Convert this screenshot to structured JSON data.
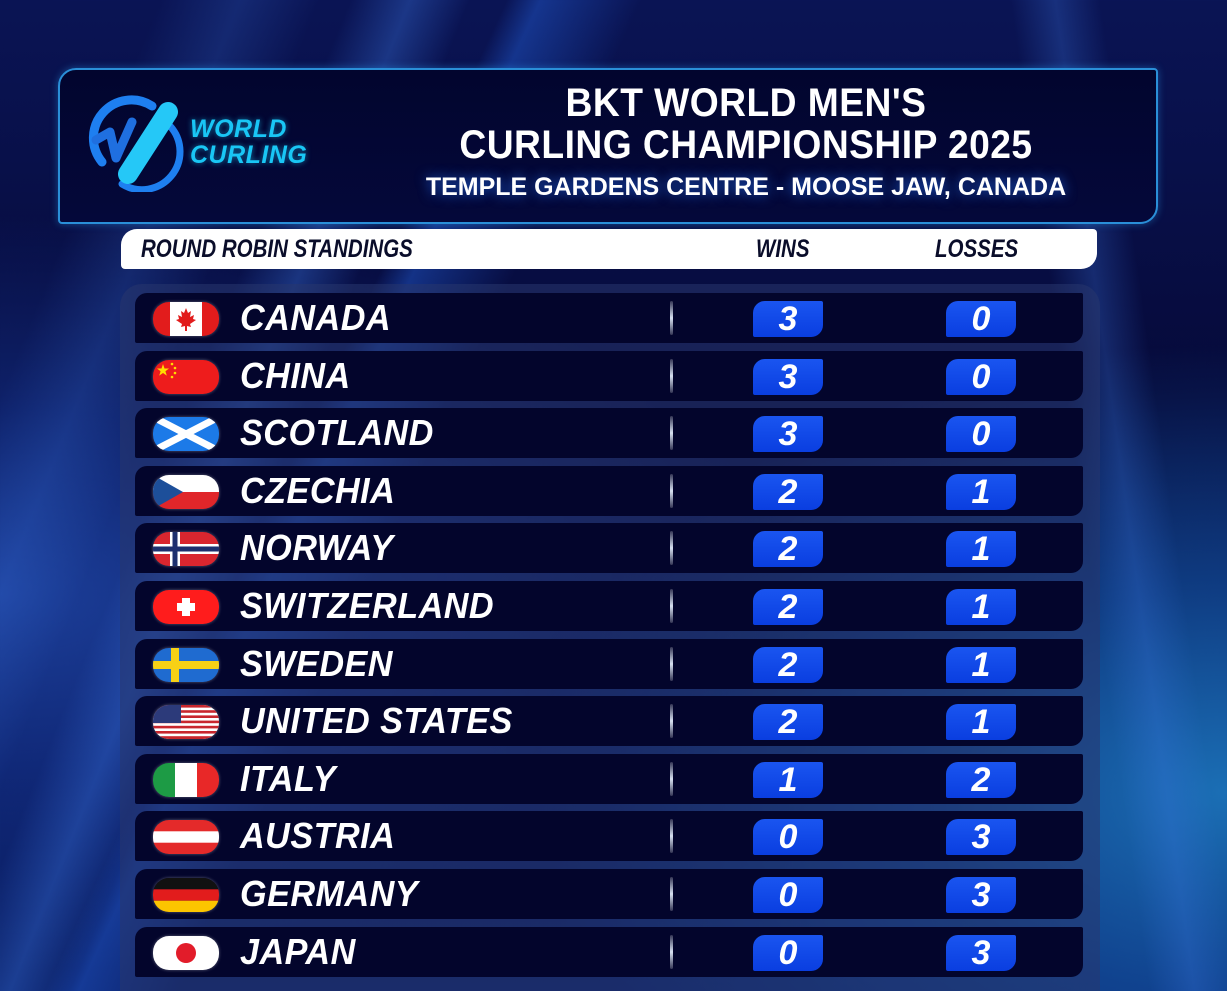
{
  "header": {
    "logo_text_line1": "WORLD",
    "logo_text_line2": "CURLING",
    "title_line1": "BKT WORLD MEN'S",
    "title_line2": "CURLING CHAMPIONSHIP 2025",
    "subtitle": "TEMPLE GARDENS CENTRE - MOOSE JAW, CANADA"
  },
  "columns": {
    "title": "ROUND ROBIN STANDINGS",
    "wins": "WINS",
    "losses": "LOSSES"
  },
  "colors": {
    "badge": "#0a3ee0",
    "row_bg": "#03052c",
    "logo": "#19c6f5",
    "header_border": "#2a8fd8"
  },
  "standings": [
    {
      "country": "CANADA",
      "flag": "canada-flag-icon",
      "wins": "3",
      "losses": "0"
    },
    {
      "country": "CHINA",
      "flag": "china-flag-icon",
      "wins": "3",
      "losses": "0"
    },
    {
      "country": "SCOTLAND",
      "flag": "scotland-flag-icon",
      "wins": "3",
      "losses": "0"
    },
    {
      "country": "CZECHIA",
      "flag": "czechia-flag-icon",
      "wins": "2",
      "losses": "1"
    },
    {
      "country": "NORWAY",
      "flag": "norway-flag-icon",
      "wins": "2",
      "losses": "1"
    },
    {
      "country": "SWITZERLAND",
      "flag": "switzerland-flag-icon",
      "wins": "2",
      "losses": "1"
    },
    {
      "country": "SWEDEN",
      "flag": "sweden-flag-icon",
      "wins": "2",
      "losses": "1"
    },
    {
      "country": "UNITED STATES",
      "flag": "usa-flag-icon",
      "wins": "2",
      "losses": "1"
    },
    {
      "country": "ITALY",
      "flag": "italy-flag-icon",
      "wins": "1",
      "losses": "2"
    },
    {
      "country": "AUSTRIA",
      "flag": "austria-flag-icon",
      "wins": "0",
      "losses": "3"
    },
    {
      "country": "GERMANY",
      "flag": "germany-flag-icon",
      "wins": "0",
      "losses": "3"
    },
    {
      "country": "JAPAN",
      "flag": "japan-flag-icon",
      "wins": "0",
      "losses": "3"
    }
  ]
}
